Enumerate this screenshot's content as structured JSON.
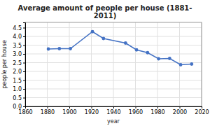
{
  "chart_data": {
    "type": "line",
    "title": "Average amount of people per house (1881-\n2011)",
    "xlabel": "year",
    "ylabel": "people per house",
    "x": [
      1881,
      1891,
      1901,
      1921,
      1931,
      1951,
      1961,
      1971,
      1981,
      1991,
      2001,
      2011
    ],
    "values": [
      3.28,
      3.3,
      3.3,
      4.27,
      3.88,
      3.62,
      3.23,
      3.07,
      2.72,
      2.74,
      2.38,
      2.42
    ],
    "color": "#4472c4",
    "marker": "circle",
    "xlim": [
      1860,
      2020
    ],
    "ylim": [
      0,
      4.8
    ],
    "xticks": [
      1860,
      1880,
      1900,
      1920,
      1940,
      1960,
      1980,
      2000,
      2020
    ],
    "yticks": [
      {
        "value": 0,
        "label": "0.0"
      },
      0.5,
      {
        "value": 1.0,
        "label": "1.0"
      },
      1.5,
      {
        "value": 2.0,
        "label": "2.0"
      },
      2.5,
      {
        "value": 3.0,
        "label": "3.0"
      },
      3.5,
      {
        "value": 4.0,
        "label": "4.0"
      },
      4.5
    ],
    "grid": true
  }
}
